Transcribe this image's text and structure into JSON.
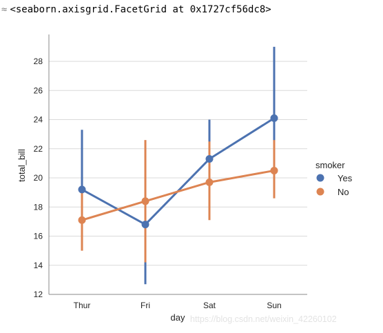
{
  "output": {
    "marker": "≈",
    "text": "<seaborn.axisgrid.FacetGrid at 0x1727cf56dc8>"
  },
  "watermark": "https://blog.csdn.net/weixin_42260102",
  "chart_data": {
    "type": "line",
    "title": "",
    "xlabel": "day",
    "ylabel": "total_bill",
    "categories": [
      "Thur",
      "Fri",
      "Sat",
      "Sun"
    ],
    "ylim": [
      12,
      29.7
    ],
    "yticks": [
      12,
      14,
      16,
      18,
      20,
      22,
      24,
      26,
      28
    ],
    "grid": true,
    "legend": {
      "title": "smoker",
      "placement": "right"
    },
    "series": [
      {
        "name": "Yes",
        "color": "#4c72b0",
        "values": [
          19.2,
          16.8,
          21.3,
          24.1
        ],
        "ci_low": [
          16.9,
          12.7,
          18.7,
          19.5
        ],
        "ci_high": [
          23.3,
          21.4,
          24.0,
          29.0
        ]
      },
      {
        "name": "No",
        "color": "#dd8452",
        "values": [
          17.1,
          18.4,
          19.7,
          20.5
        ],
        "ci_low": [
          15.0,
          14.2,
          17.1,
          18.6
        ],
        "ci_high": [
          19.2,
          22.6,
          22.5,
          22.6
        ]
      }
    ]
  }
}
